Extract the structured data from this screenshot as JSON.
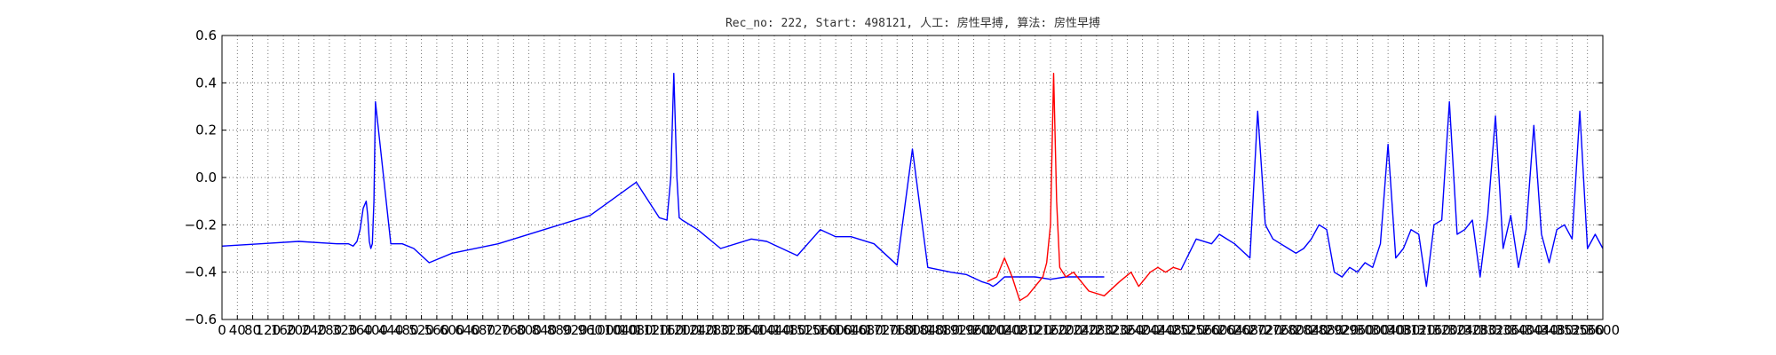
{
  "chart_data": {
    "type": "line",
    "title": "Rec_no: 222, Start: 498121, 人工: 房性早搏, 算法: 房性早搏",
    "xlabel": "",
    "ylabel": "",
    "xlim": [
      0,
      3600
    ],
    "ylim": [
      -0.6,
      0.6
    ],
    "grid": true,
    "y_ticks": [
      0.6,
      0.4,
      0.2,
      0.0,
      -0.2,
      -0.4,
      -0.6
    ],
    "y_tick_labels": [
      "0.6",
      "0.4",
      "0.2",
      "0.0",
      "−0.2",
      "−0.4",
      "−0.6"
    ],
    "x_ticks": [
      0,
      40,
      80,
      120,
      160,
      200,
      240,
      280,
      320,
      360,
      400,
      440,
      480,
      520,
      560,
      600,
      640,
      680,
      720,
      760,
      800,
      840,
      880,
      920,
      960,
      1000,
      1040,
      1080,
      1120,
      1160,
      1200,
      1240,
      1280,
      1320,
      1360,
      1400,
      1440,
      1480,
      1520,
      1560,
      1600,
      1640,
      1680,
      1720,
      1760,
      1800,
      1840,
      1880,
      1920,
      1960,
      2000,
      2040,
      2080,
      2120,
      2160,
      2200,
      2240,
      2280,
      2320,
      2360,
      2400,
      2440,
      2480,
      2520,
      2560,
      2600,
      2640,
      2680,
      2720,
      2760,
      2800,
      2840,
      2880,
      2920,
      2960,
      3000,
      3040,
      3080,
      3120,
      3160,
      3200,
      3240,
      3280,
      3320,
      3360,
      3400,
      3440,
      3480,
      3520,
      3560,
      3600
    ],
    "x_tick_labels": [
      "0",
      "40",
      "80",
      "120",
      "160",
      "200",
      "240",
      "280",
      "320",
      "360",
      "400",
      "440",
      "480",
      "520",
      "560",
      "600",
      "640",
      "680",
      "720",
      "760",
      "800",
      "840",
      "880",
      "920",
      "960",
      "1000",
      "1040",
      "1080",
      "1120",
      "1160",
      "1200",
      "1240",
      "1280",
      "1320",
      "1360",
      "1400",
      "1440",
      "1480",
      "1520",
      "1560",
      "1600",
      "1640",
      "1680",
      "1720",
      "1760",
      "1800",
      "1840",
      "1880",
      "1920",
      "1960",
      "2000",
      "2040",
      "2080",
      "2120",
      "2160",
      "2200",
      "2240",
      "2280",
      "2320",
      "2360",
      "2400",
      "2440",
      "2480",
      "2520",
      "2560",
      "2600",
      "2640",
      "2680",
      "2720",
      "2760",
      "2800",
      "2840",
      "2880",
      "2920",
      "2960",
      "3000",
      "3040",
      "3080",
      "3120",
      "3160",
      "3200",
      "3240",
      "3280",
      "3320",
      "3360",
      "3400",
      "3440",
      "3480",
      "3520",
      "3560",
      "3600"
    ],
    "series": [
      {
        "color": "#0000ff",
        "x": [
          0,
          100,
          200,
          300,
          330,
          342,
          352,
          360,
          368,
          376,
          380,
          384,
          388,
          392,
          396,
          400,
          440,
          470,
          500,
          540,
          600,
          720,
          840,
          960,
          1080,
          1140,
          1160,
          1170,
          1178,
          1186,
          1192,
          1200,
          1240,
          1300,
          1380,
          1420,
          1500,
          1560,
          1600,
          1640,
          1700,
          1760,
          1800,
          1840,
          1900,
          1940,
          1980,
          2000,
          2010,
          2020,
          2040,
          2080,
          2120,
          2160,
          2200,
          2240,
          2280,
          2300
        ],
        "y": [
          -0.29,
          -0.28,
          -0.27,
          -0.28,
          -0.28,
          -0.29,
          -0.27,
          -0.22,
          -0.13,
          -0.1,
          -0.16,
          -0.27,
          -0.3,
          -0.28,
          -0.1,
          0.32,
          -0.28,
          -0.28,
          -0.3,
          -0.36,
          -0.32,
          -0.28,
          -0.22,
          -0.16,
          -0.02,
          -0.17,
          -0.18,
          0.0,
          0.44,
          0.0,
          -0.17,
          -0.18,
          -0.22,
          -0.3,
          -0.26,
          -0.27,
          -0.33,
          -0.22,
          -0.25,
          -0.25,
          -0.28,
          -0.37,
          0.12,
          -0.38,
          -0.4,
          -0.41,
          -0.44,
          -0.45,
          -0.46,
          -0.45,
          -0.42,
          -0.42,
          -0.42,
          -0.43,
          -0.42,
          -0.42,
          -0.42,
          -0.42
        ]
      },
      {
        "color": "#ff0000",
        "x": [
          1995,
          2020,
          2040,
          2060,
          2080,
          2100,
          2120,
          2140,
          2150,
          2160,
          2168,
          2176,
          2184,
          2192,
          2200,
          2220,
          2260,
          2300,
          2340,
          2370,
          2390,
          2420,
          2440,
          2460,
          2480,
          2500
        ],
        "y": [
          -0.44,
          -0.42,
          -0.34,
          -0.42,
          -0.52,
          -0.5,
          -0.46,
          -0.42,
          -0.36,
          -0.2,
          0.44,
          -0.1,
          -0.38,
          -0.4,
          -0.42,
          -0.4,
          -0.48,
          -0.5,
          -0.44,
          -0.4,
          -0.46,
          -0.4,
          -0.38,
          -0.4,
          -0.38,
          -0.39
        ]
      },
      {
        "color": "#0000ff",
        "x": [
          2500,
          2540,
          2580,
          2600,
          2640,
          2680,
          2700,
          2720,
          2740,
          2760,
          2780,
          2800,
          2820,
          2840,
          2860,
          2880,
          2900,
          2920,
          2940,
          2960,
          2980,
          3000,
          3020,
          3040,
          3060,
          3080,
          3100,
          3120,
          3140,
          3160,
          3180,
          3200,
          3220,
          3240,
          3260,
          3280,
          3300,
          3320,
          3340,
          3360,
          3380,
          3400,
          3420,
          3440,
          3460,
          3480,
          3500,
          3520,
          3540,
          3560,
          3580,
          3600
        ],
        "y": [
          -0.39,
          -0.26,
          -0.28,
          -0.24,
          -0.28,
          -0.34,
          0.28,
          -0.2,
          -0.26,
          -0.28,
          -0.3,
          -0.32,
          -0.3,
          -0.26,
          -0.2,
          -0.22,
          -0.4,
          -0.42,
          -0.38,
          -0.4,
          -0.36,
          -0.38,
          -0.28,
          0.14,
          -0.34,
          -0.3,
          -0.22,
          -0.24,
          -0.46,
          -0.2,
          -0.18,
          0.32,
          -0.24,
          -0.22,
          -0.18,
          -0.42,
          -0.16,
          0.26,
          -0.3,
          -0.16,
          -0.38,
          -0.22,
          0.22,
          -0.24,
          -0.36,
          -0.22,
          -0.2,
          -0.26,
          0.28,
          -0.3,
          -0.24,
          -0.3
        ]
      }
    ]
  }
}
